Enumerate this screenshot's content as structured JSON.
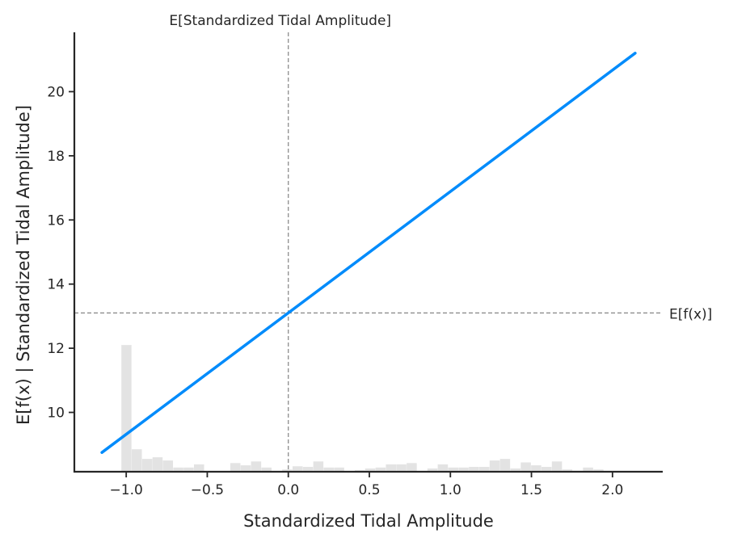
{
  "chart_data": {
    "type": "line",
    "xlabel": "Standardized Tidal Amplitude",
    "ylabel": "E[f(x) | Standardized Tidal Amplitude]",
    "xlim": [
      -1.32,
      2.31
    ],
    "ylim": [
      8.15,
      21.85
    ],
    "x_ticks": [
      -1.0,
      -0.5,
      0.0,
      0.5,
      1.0,
      1.5,
      2.0
    ],
    "x_tick_labels": [
      "−1.0",
      "−0.5",
      "0.0",
      "0.5",
      "1.0",
      "1.5",
      "2.0"
    ],
    "y_ticks": [
      10,
      12,
      14,
      16,
      18,
      20
    ],
    "y_tick_labels": [
      "10",
      "12",
      "14",
      "16",
      "18",
      "20"
    ],
    "series": [
      {
        "x": [
          -1.15,
          2.14
        ],
        "y": [
          8.75,
          21.2
        ],
        "color": "#008bfb"
      }
    ],
    "expected_feature": {
      "value": 0.0,
      "label": "E[Standardized Tidal Amplitude]"
    },
    "expected_output": {
      "value": 13.1,
      "label": "E[f(x)]"
    },
    "histogram": {
      "bin_width": 0.064,
      "bins": [
        [
          -1.03,
          12.1
        ],
        [
          -0.966,
          8.85
        ],
        [
          -0.902,
          8.55
        ],
        [
          -0.838,
          8.6
        ],
        [
          -0.774,
          8.5
        ],
        [
          -0.71,
          8.28
        ],
        [
          -0.646,
          8.28
        ],
        [
          -0.582,
          8.38
        ],
        [
          -0.358,
          8.42
        ],
        [
          -0.294,
          8.35
        ],
        [
          -0.23,
          8.47
        ],
        [
          -0.166,
          8.28
        ],
        [
          -0.038,
          8.22
        ],
        [
          0.026,
          8.32
        ],
        [
          0.09,
          8.3
        ],
        [
          0.154,
          8.47
        ],
        [
          0.218,
          8.28
        ],
        [
          0.282,
          8.28
        ],
        [
          0.41,
          8.2
        ],
        [
          0.474,
          8.25
        ],
        [
          0.538,
          8.28
        ],
        [
          0.602,
          8.38
        ],
        [
          0.666,
          8.38
        ],
        [
          0.73,
          8.42
        ],
        [
          0.858,
          8.25
        ],
        [
          0.922,
          8.38
        ],
        [
          0.986,
          8.28
        ],
        [
          1.05,
          8.28
        ],
        [
          1.114,
          8.3
        ],
        [
          1.178,
          8.3
        ],
        [
          1.242,
          8.5
        ],
        [
          1.306,
          8.55
        ],
        [
          1.37,
          8.25
        ],
        [
          1.434,
          8.44
        ],
        [
          1.498,
          8.35
        ],
        [
          1.562,
          8.3
        ],
        [
          1.626,
          8.47
        ],
        [
          1.69,
          8.22
        ],
        [
          1.754,
          8.18
        ],
        [
          1.818,
          8.28
        ],
        [
          1.882,
          8.22
        ]
      ],
      "color": "#e3e3e3"
    },
    "grid": false,
    "legend": "none"
  }
}
